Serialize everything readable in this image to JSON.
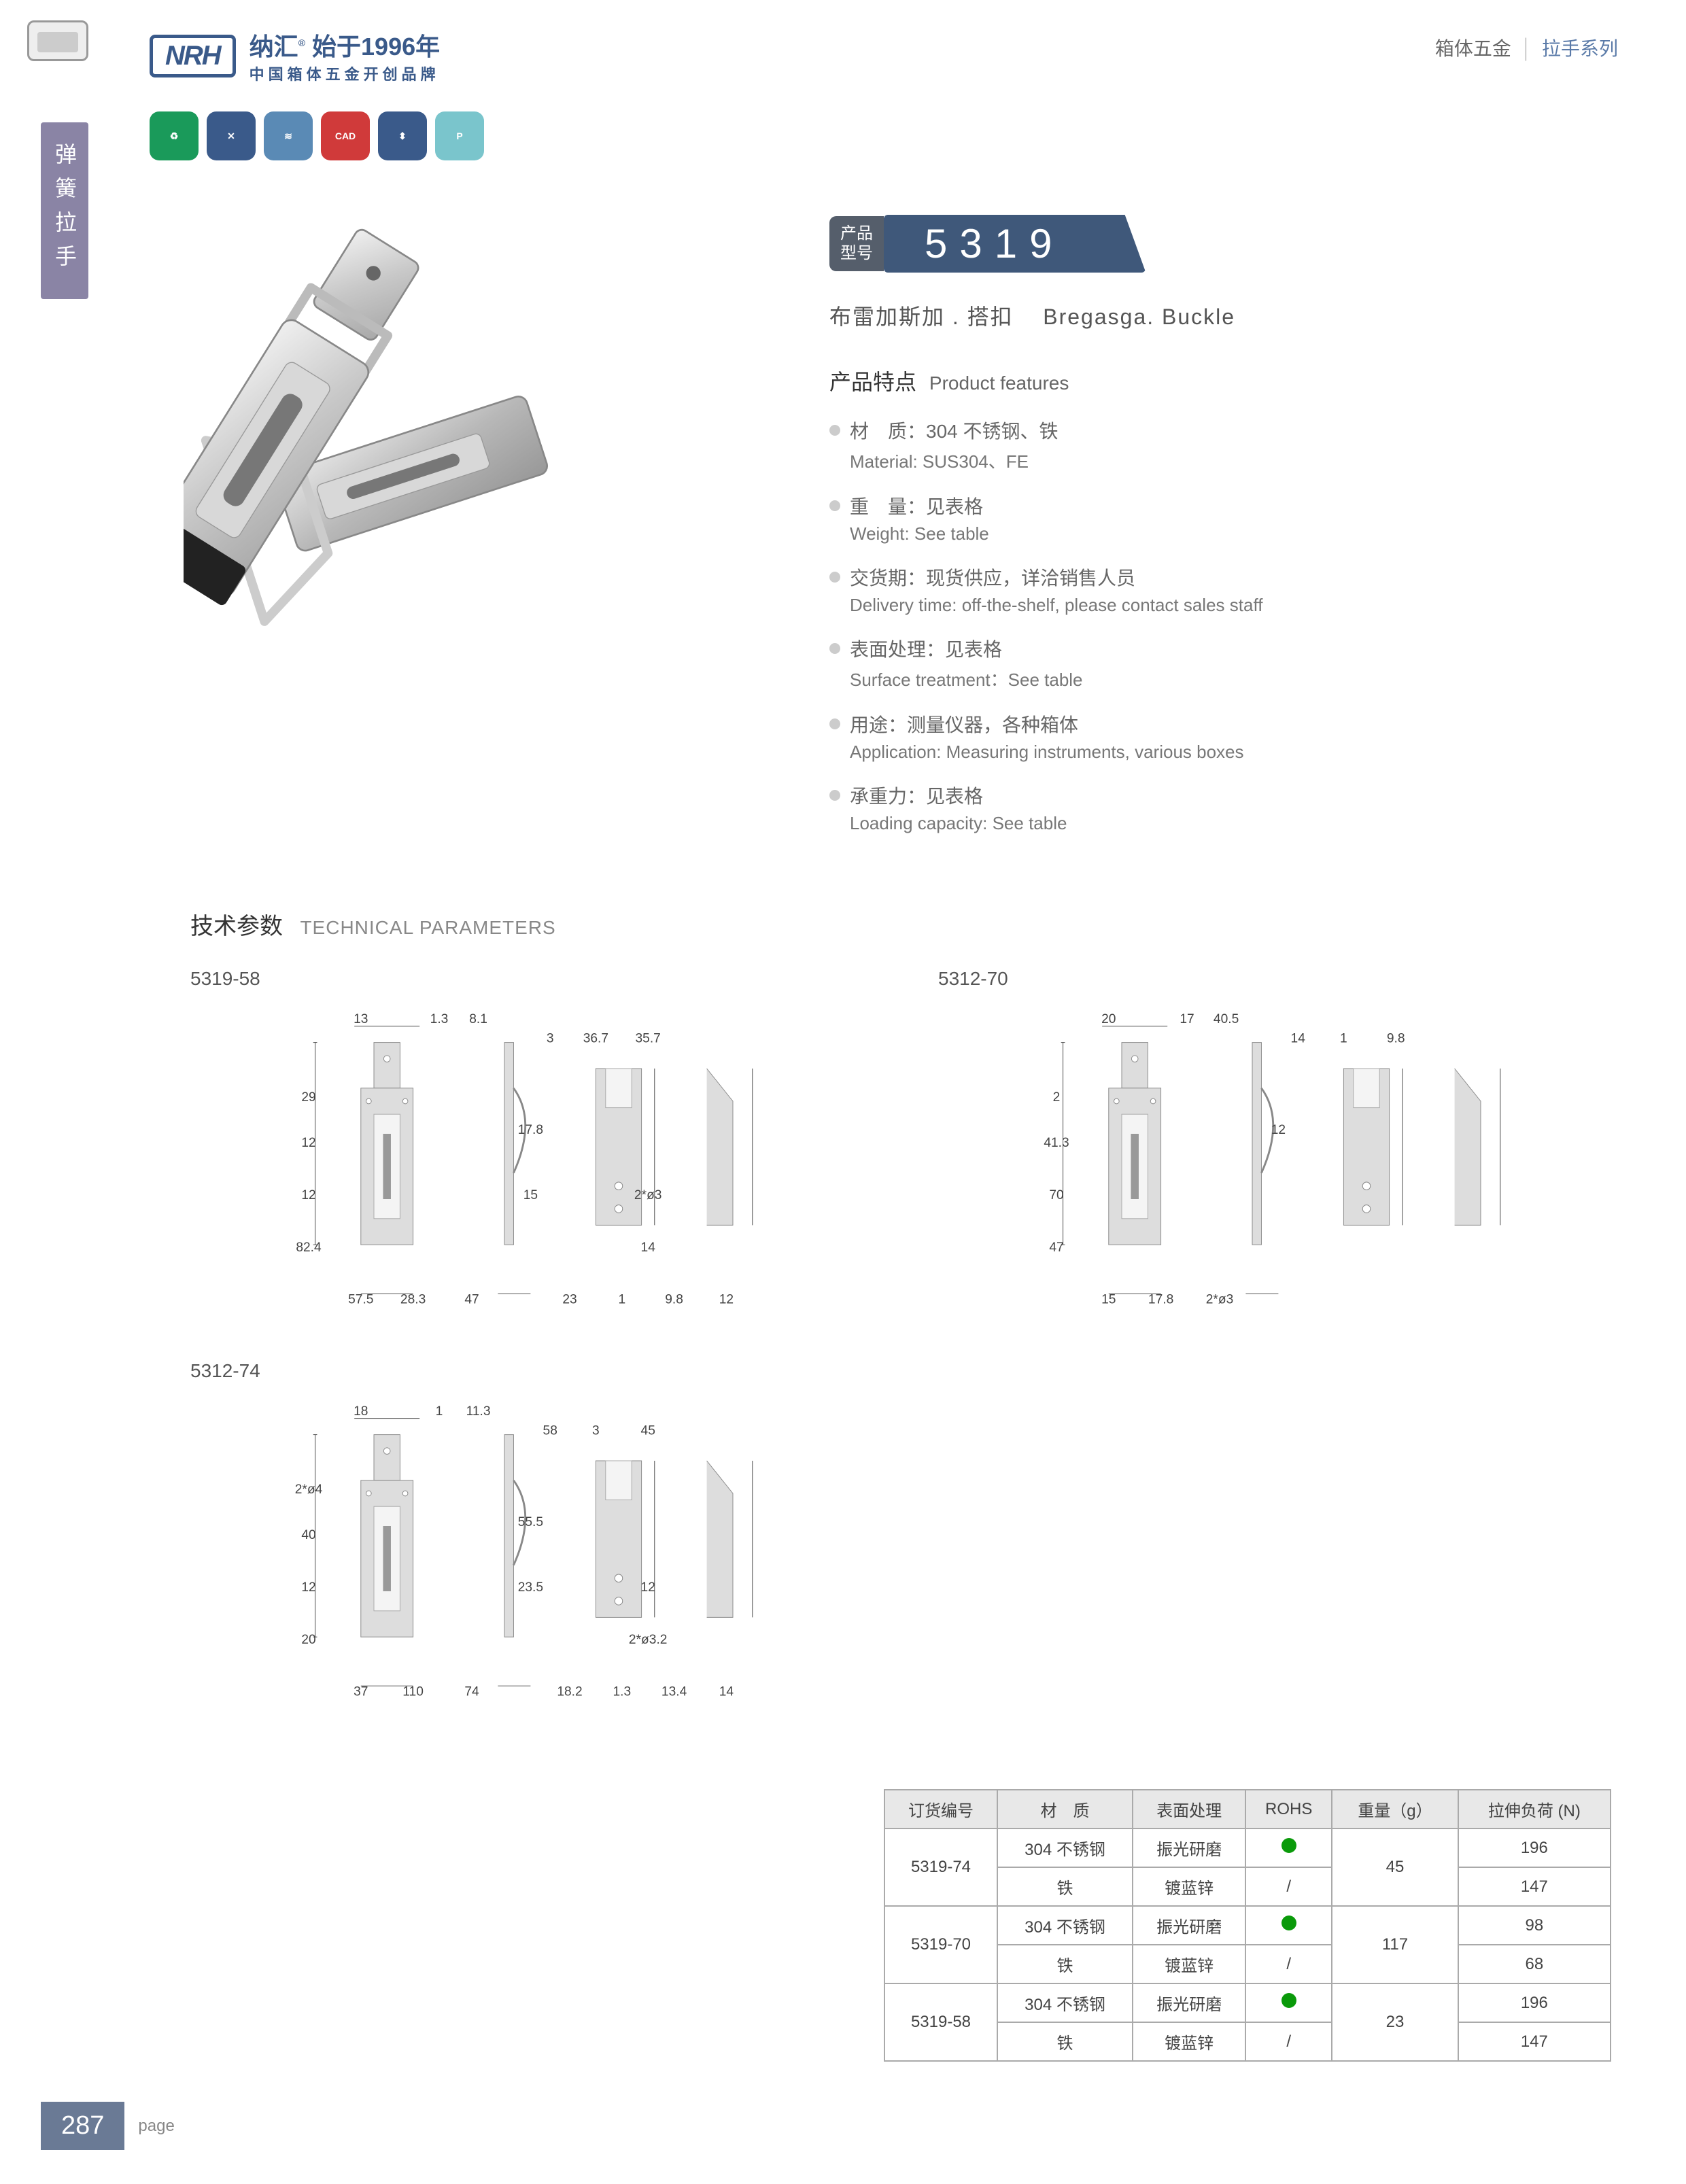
{
  "header": {
    "logo_abbr": "NRH",
    "logo_cn_main": "纳汇",
    "logo_cn_year": "始于1996年",
    "logo_cn_sub": "中国箱体五金开创品牌",
    "breadcrumb_cat": "箱体五金",
    "breadcrumb_series": "拉手系列"
  },
  "side_tab": "弹簧拉手",
  "badges": [
    {
      "color": "#1a9a5a",
      "glyph": "♻"
    },
    {
      "color": "#3a5a8a",
      "glyph": "✕"
    },
    {
      "color": "#5a8ab5",
      "glyph": "≋"
    },
    {
      "color": "#d03a3a",
      "glyph": "CAD"
    },
    {
      "color": "#3a5a8a",
      "glyph": "⬍"
    },
    {
      "color": "#7ac5cc",
      "glyph": "P"
    }
  ],
  "product": {
    "model_label": "产品型号",
    "model_number": "5319",
    "subtitle_cn": "布雷加斯加 . 搭扣",
    "subtitle_en": "Bregasga. Buckle",
    "features_head_cn": "产品特点",
    "features_head_en": "Product features",
    "features": [
      {
        "cn": "材　质：304 不锈钢、铁",
        "en": "Material: SUS304、FE"
      },
      {
        "cn": "重　量：见表格",
        "en": "Weight: See table"
      },
      {
        "cn": "交货期：现货供应，详洽销售人员",
        "en": "Delivery time: off-the-shelf, please contact sales staff"
      },
      {
        "cn": "表面处理：见表格",
        "en": "Surface treatment：See table"
      },
      {
        "cn": "用途：测量仪器，各种箱体",
        "en": "Application: Measuring instruments, various boxes"
      },
      {
        "cn": "承重力：见表格",
        "en": "Loading capacity: See table"
      }
    ]
  },
  "tech": {
    "head_cn": "技术参数",
    "head_en": "TECHNICAL PARAMETERS",
    "diagrams": [
      {
        "label": "5319-58",
        "dims": [
          "13",
          "1.3",
          "8.1",
          "29",
          "12",
          "12",
          "82.4",
          "28.3",
          "57.5",
          "47",
          "3",
          "36.7",
          "35.7",
          "17.8",
          "15",
          "2*ø3",
          "14",
          "23",
          "1",
          "9.8",
          "12"
        ]
      },
      {
        "label": "5312-70",
        "dims": [
          "20",
          "17",
          "40.5",
          "2",
          "41.3",
          "70",
          "47",
          "17.8",
          "15",
          "2*ø3",
          "14",
          "1",
          "9.8",
          "12"
        ]
      },
      {
        "label": "5312-74",
        "dims": [
          "18",
          "1",
          "11.3",
          "2*ø4",
          "40",
          "12",
          "20",
          "110",
          "37",
          "74",
          "58",
          "3",
          "45",
          "55.5",
          "23.5",
          "12",
          "2*ø3.2",
          "18.2",
          "1.3",
          "13.4",
          "14"
        ]
      }
    ]
  },
  "table": {
    "headers": [
      "订货编号",
      "材　质",
      "表面处理",
      "ROHS",
      "重量（g）",
      "拉伸负荷 (N)"
    ],
    "rows": [
      {
        "code": "5319-74",
        "mat": "304 不锈钢",
        "surf": "振光研磨",
        "rohs": "dot",
        "weight": "45",
        "load": "196"
      },
      {
        "code": "",
        "mat": "铁",
        "surf": "镀蓝锌",
        "rohs": "/",
        "weight": "",
        "load": "147"
      },
      {
        "code": "5319-70",
        "mat": "304 不锈钢",
        "surf": "振光研磨",
        "rohs": "dot",
        "weight": "117",
        "load": "98"
      },
      {
        "code": "",
        "mat": "铁",
        "surf": "镀蓝锌",
        "rohs": "/",
        "weight": "",
        "load": "68"
      },
      {
        "code": "5319-58",
        "mat": "304 不锈钢",
        "surf": "振光研磨",
        "rohs": "dot",
        "weight": "23",
        "load": "196"
      },
      {
        "code": "",
        "mat": "铁",
        "surf": "镀蓝锌",
        "rohs": "/",
        "weight": "",
        "load": "147"
      }
    ]
  },
  "page_number": "287",
  "page_label": "page",
  "colors": {
    "brand": "#3a5a8a",
    "pill": "#3f587a",
    "side": "#8a84a5",
    "pagenum": "#6a7a95",
    "rohs": "#0a9a0a"
  }
}
